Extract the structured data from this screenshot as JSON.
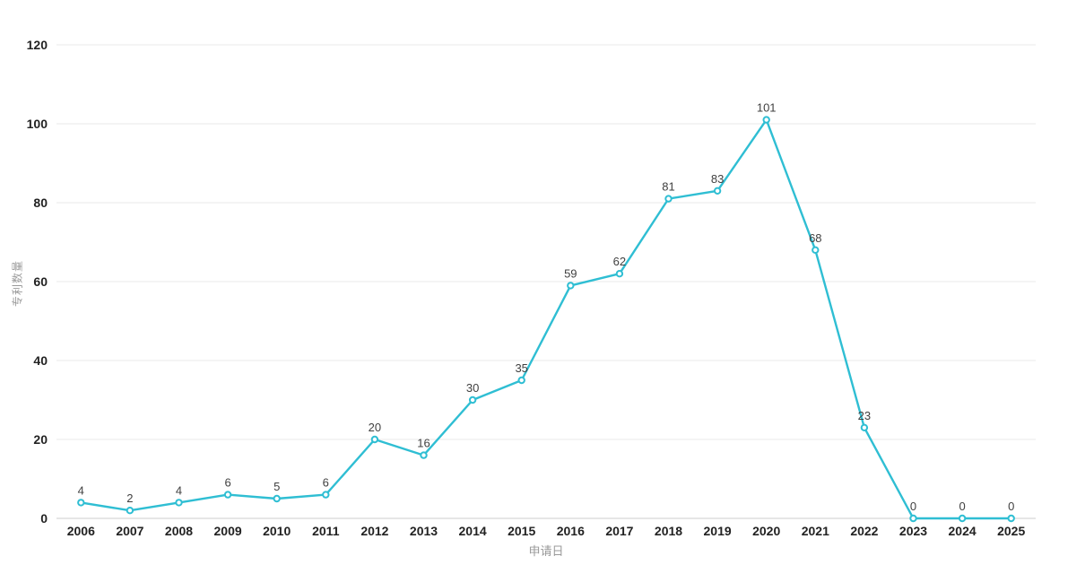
{
  "chart": {
    "x_axis_title": "申请日",
    "y_axis_title": "专利数量"
  },
  "chart_data": {
    "type": "line",
    "title": "",
    "categories": [
      "2006",
      "2007",
      "2008",
      "2009",
      "2010",
      "2011",
      "2012",
      "2013",
      "2014",
      "2015",
      "2016",
      "2017",
      "2018",
      "2019",
      "2020",
      "2021",
      "2022",
      "2023",
      "2024",
      "2025"
    ],
    "series": [
      {
        "name": "专利数量",
        "values": [
          4,
          2,
          4,
          6,
          5,
          6,
          20,
          16,
          30,
          35,
          59,
          62,
          81,
          83,
          101,
          68,
          23,
          0,
          0,
          0
        ]
      }
    ],
    "data_labels": [
      4,
      2,
      4,
      6,
      5,
      6,
      20,
      16,
      30,
      35,
      59,
      62,
      81,
      83,
      101,
      68,
      23,
      0,
      0,
      0
    ],
    "xlabel": "申请日",
    "ylabel": "专利数量",
    "ylim": [
      0,
      120
    ],
    "yticks": [
      0,
      20,
      40,
      60,
      80,
      100,
      120
    ],
    "grid": "horizontal-only",
    "legend_position": "none",
    "colors": {
      "line": "#2fbed3",
      "marker_fill": "#ffffff",
      "gridline": "#e8e8e8",
      "axis_line": "#cccccc",
      "tick_label": "#222222",
      "data_label": "#404040",
      "axis_title": "#999999",
      "background": "#ffffff"
    }
  }
}
